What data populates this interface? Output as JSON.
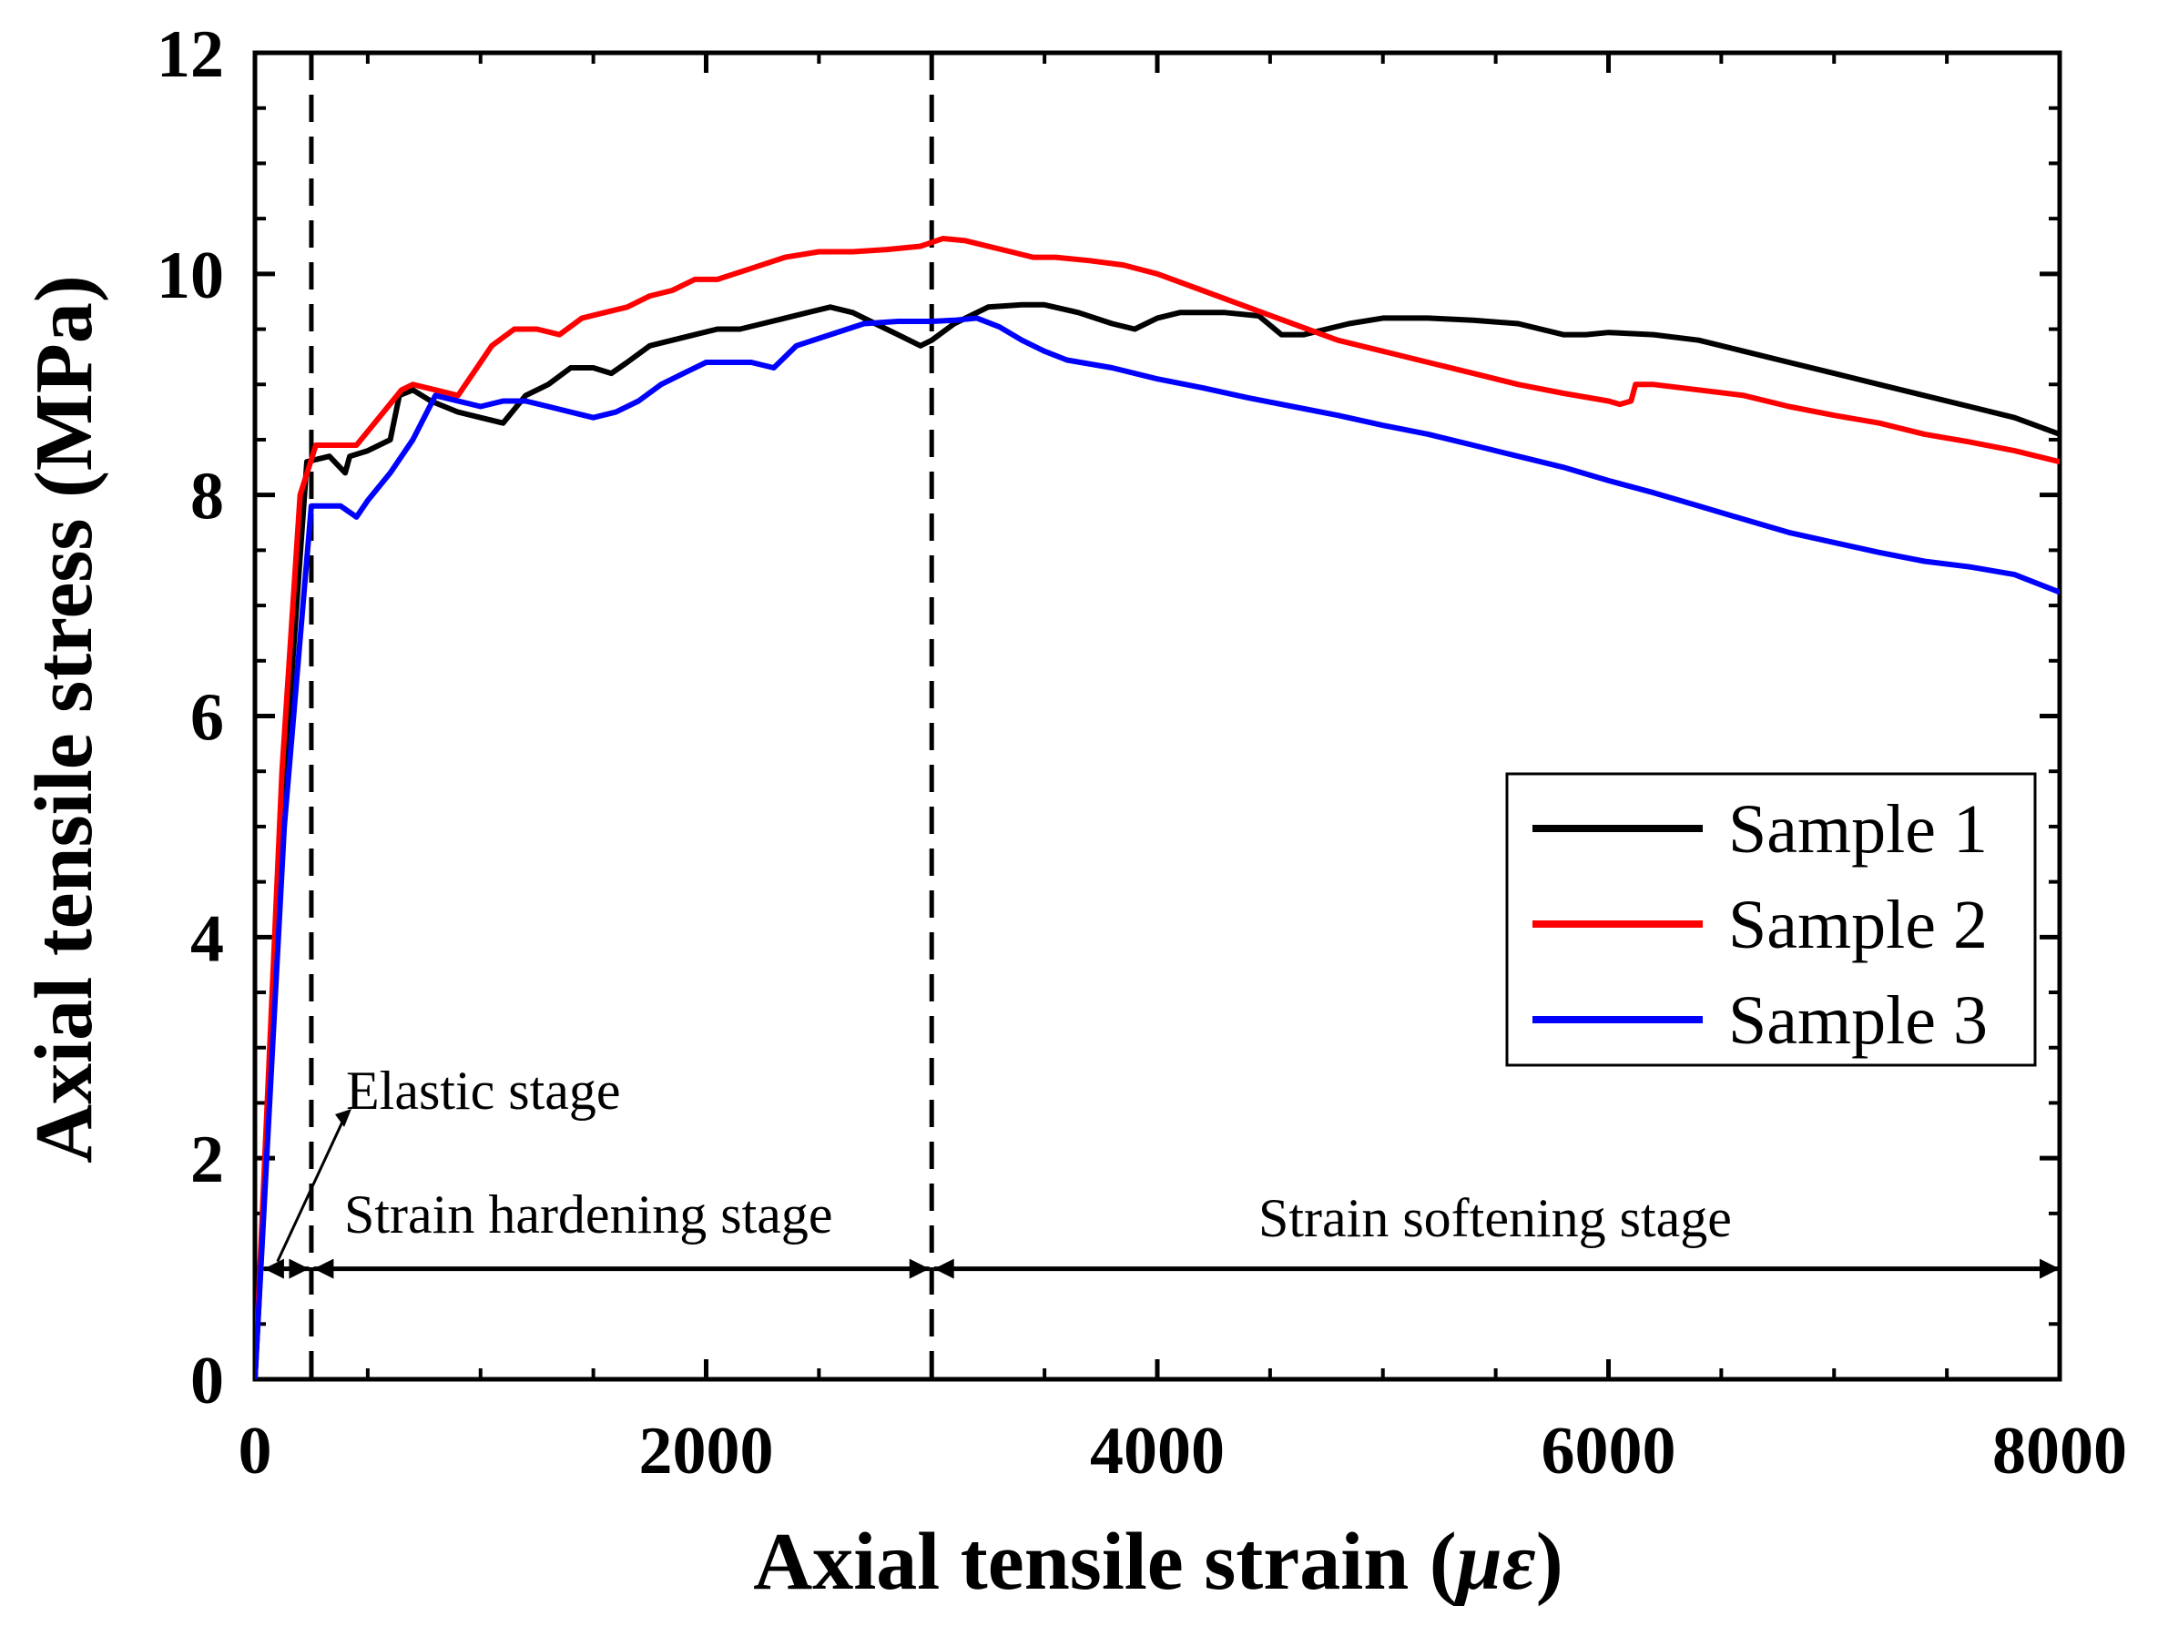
{
  "chart_data": {
    "type": "line",
    "title": "",
    "xlabel": "Axial tensile strain (με)",
    "xlabel_main": "Axial tensile strain (",
    "xlabel_symbol": "με",
    "xlabel_close": ")",
    "ylabel": "Axial tensile stress (MPa)",
    "xlim": [
      0,
      8000
    ],
    "ylim": [
      0,
      12
    ],
    "xticks": [
      0,
      2000,
      4000,
      6000,
      8000
    ],
    "yticks": [
      0,
      2,
      4,
      6,
      8,
      10,
      12
    ],
    "xtick_labels": [
      "0",
      "2000",
      "4000",
      "6000",
      "8000"
    ],
    "ytick_labels": [
      "0",
      "2",
      "4",
      "6",
      "8",
      "10",
      "12"
    ],
    "grid": false,
    "legend_position": "middle-right",
    "series": [
      {
        "name": "Sample 1",
        "color": "#000000",
        "points": [
          [
            0,
            0
          ],
          [
            150,
            6.0
          ],
          [
            230,
            8.3
          ],
          [
            330,
            8.35
          ],
          [
            400,
            8.2
          ],
          [
            420,
            8.35
          ],
          [
            500,
            8.4
          ],
          [
            600,
            8.5
          ],
          [
            640,
            8.9
          ],
          [
            700,
            8.95
          ],
          [
            780,
            8.85
          ],
          [
            900,
            8.75
          ],
          [
            1000,
            8.7
          ],
          [
            1100,
            8.65
          ],
          [
            1200,
            8.9
          ],
          [
            1300,
            9.0
          ],
          [
            1400,
            9.15
          ],
          [
            1500,
            9.15
          ],
          [
            1580,
            9.1
          ],
          [
            1650,
            9.2
          ],
          [
            1750,
            9.35
          ],
          [
            1850,
            9.4
          ],
          [
            1950,
            9.45
          ],
          [
            2050,
            9.5
          ],
          [
            2150,
            9.5
          ],
          [
            2250,
            9.55
          ],
          [
            2350,
            9.6
          ],
          [
            2450,
            9.65
          ],
          [
            2550,
            9.7
          ],
          [
            2650,
            9.65
          ],
          [
            2750,
            9.55
          ],
          [
            2850,
            9.45
          ],
          [
            2950,
            9.35
          ],
          [
            3000,
            9.4
          ],
          [
            3100,
            9.55
          ],
          [
            3250,
            9.7
          ],
          [
            3400,
            9.72
          ],
          [
            3500,
            9.72
          ],
          [
            3650,
            9.65
          ],
          [
            3800,
            9.55
          ],
          [
            3900,
            9.5
          ],
          [
            4000,
            9.6
          ],
          [
            4100,
            9.65
          ],
          [
            4300,
            9.65
          ],
          [
            4450,
            9.62
          ],
          [
            4550,
            9.45
          ],
          [
            4650,
            9.45
          ],
          [
            4750,
            9.5
          ],
          [
            4850,
            9.55
          ],
          [
            5000,
            9.6
          ],
          [
            5200,
            9.6
          ],
          [
            5400,
            9.58
          ],
          [
            5600,
            9.55
          ],
          [
            5800,
            9.45
          ],
          [
            5900,
            9.45
          ],
          [
            6000,
            9.47
          ],
          [
            6200,
            9.45
          ],
          [
            6400,
            9.4
          ],
          [
            6600,
            9.3
          ],
          [
            6800,
            9.2
          ],
          [
            7000,
            9.1
          ],
          [
            7200,
            9.0
          ],
          [
            7400,
            8.9
          ],
          [
            7600,
            8.8
          ],
          [
            7800,
            8.7
          ],
          [
            8000,
            8.55
          ]
        ]
      },
      {
        "name": "Sample 2",
        "color": "#ff0000",
        "points": [
          [
            0,
            0
          ],
          [
            120,
            5.5
          ],
          [
            200,
            8.0
          ],
          [
            270,
            8.45
          ],
          [
            350,
            8.45
          ],
          [
            450,
            8.45
          ],
          [
            550,
            8.7
          ],
          [
            650,
            8.95
          ],
          [
            700,
            9.0
          ],
          [
            800,
            8.95
          ],
          [
            900,
            8.9
          ],
          [
            1000,
            9.2
          ],
          [
            1050,
            9.35
          ],
          [
            1150,
            9.5
          ],
          [
            1250,
            9.5
          ],
          [
            1350,
            9.45
          ],
          [
            1450,
            9.6
          ],
          [
            1550,
            9.65
          ],
          [
            1650,
            9.7
          ],
          [
            1750,
            9.8
          ],
          [
            1850,
            9.85
          ],
          [
            1950,
            9.95
          ],
          [
            2050,
            9.95
          ],
          [
            2200,
            10.05
          ],
          [
            2350,
            10.15
          ],
          [
            2500,
            10.2
          ],
          [
            2650,
            10.2
          ],
          [
            2800,
            10.22
          ],
          [
            2950,
            10.25
          ],
          [
            3050,
            10.32
          ],
          [
            3150,
            10.3
          ],
          [
            3250,
            10.25
          ],
          [
            3350,
            10.2
          ],
          [
            3450,
            10.15
          ],
          [
            3550,
            10.15
          ],
          [
            3700,
            10.12
          ],
          [
            3850,
            10.08
          ],
          [
            4000,
            10.0
          ],
          [
            4200,
            9.85
          ],
          [
            4400,
            9.7
          ],
          [
            4600,
            9.55
          ],
          [
            4800,
            9.4
          ],
          [
            5000,
            9.3
          ],
          [
            5200,
            9.2
          ],
          [
            5400,
            9.1
          ],
          [
            5600,
            9.0
          ],
          [
            5800,
            8.92
          ],
          [
            6000,
            8.85
          ],
          [
            6050,
            8.82
          ],
          [
            6100,
            8.85
          ],
          [
            6120,
            9.0
          ],
          [
            6200,
            9.0
          ],
          [
            6400,
            8.95
          ],
          [
            6600,
            8.9
          ],
          [
            6800,
            8.8
          ],
          [
            7000,
            8.72
          ],
          [
            7200,
            8.65
          ],
          [
            7400,
            8.55
          ],
          [
            7600,
            8.48
          ],
          [
            7800,
            8.4
          ],
          [
            8000,
            8.3
          ]
        ]
      },
      {
        "name": "Sample 3",
        "color": "#0000ff",
        "points": [
          [
            0,
            0
          ],
          [
            130,
            5.0
          ],
          [
            250,
            7.9
          ],
          [
            320,
            7.9
          ],
          [
            380,
            7.9
          ],
          [
            450,
            7.8
          ],
          [
            500,
            7.95
          ],
          [
            600,
            8.2
          ],
          [
            700,
            8.5
          ],
          [
            800,
            8.9
          ],
          [
            900,
            8.85
          ],
          [
            1000,
            8.8
          ],
          [
            1100,
            8.85
          ],
          [
            1200,
            8.85
          ],
          [
            1300,
            8.8
          ],
          [
            1400,
            8.75
          ],
          [
            1500,
            8.7
          ],
          [
            1600,
            8.75
          ],
          [
            1700,
            8.85
          ],
          [
            1800,
            9.0
          ],
          [
            1900,
            9.1
          ],
          [
            2000,
            9.2
          ],
          [
            2100,
            9.2
          ],
          [
            2200,
            9.2
          ],
          [
            2300,
            9.15
          ],
          [
            2400,
            9.35
          ],
          [
            2550,
            9.45
          ],
          [
            2700,
            9.55
          ],
          [
            2850,
            9.57
          ],
          [
            3000,
            9.57
          ],
          [
            3100,
            9.58
          ],
          [
            3200,
            9.6
          ],
          [
            3300,
            9.52
          ],
          [
            3400,
            9.4
          ],
          [
            3500,
            9.3
          ],
          [
            3600,
            9.22
          ],
          [
            3800,
            9.15
          ],
          [
            4000,
            9.05
          ],
          [
            4200,
            8.97
          ],
          [
            4400,
            8.88
          ],
          [
            4600,
            8.8
          ],
          [
            4800,
            8.72
          ],
          [
            5000,
            8.63
          ],
          [
            5200,
            8.55
          ],
          [
            5400,
            8.45
          ],
          [
            5600,
            8.35
          ],
          [
            5800,
            8.25
          ],
          [
            6000,
            8.13
          ],
          [
            6200,
            8.02
          ],
          [
            6400,
            7.9
          ],
          [
            6600,
            7.78
          ],
          [
            6800,
            7.66
          ],
          [
            7000,
            7.57
          ],
          [
            7200,
            7.48
          ],
          [
            7400,
            7.4
          ],
          [
            7600,
            7.35
          ],
          [
            7800,
            7.28
          ],
          [
            8000,
            7.12
          ]
        ]
      }
    ],
    "vlines": [
      250,
      3000
    ],
    "annotations": {
      "elastic": "Elastic stage",
      "hardening": "Strain hardening  stage",
      "softening": "Strain softening  stage"
    }
  }
}
